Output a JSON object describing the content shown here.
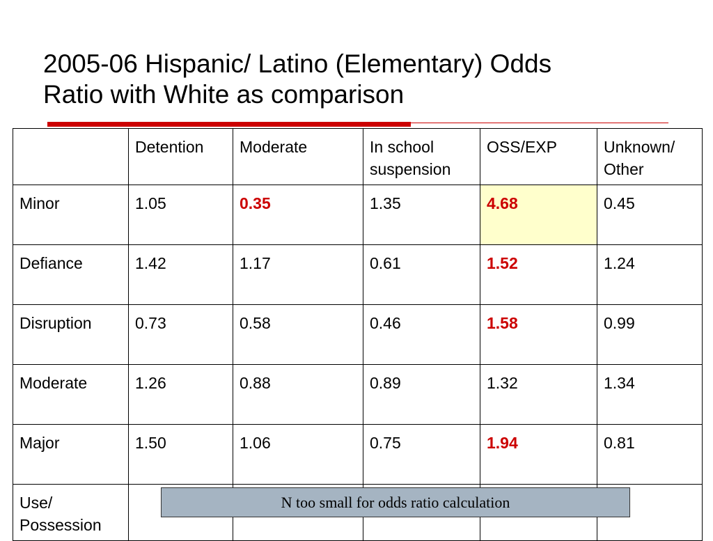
{
  "slide": {
    "title_line_1": "2005-06 Hispanic/ Latino (Elementary) Odds",
    "title_line_2": "Ratio with White as comparison"
  },
  "colors": {
    "accent_red": "#cc0000",
    "highlight_yellow": "#ffffcc",
    "note_box_fill": "#a5b4c2"
  },
  "table": {
    "header": [
      "",
      "Detention",
      "Moderate",
      "In school suspension",
      "OSS/EXP",
      "Unknown/ Other"
    ],
    "rows": [
      {
        "label": "Minor",
        "values": [
          "1.05",
          "0.35",
          "1.35",
          "4.68",
          "0.45"
        ]
      },
      {
        "label": "Defiance",
        "values": [
          "1.42",
          "1.17",
          "0.61",
          "1.52",
          "1.24"
        ]
      },
      {
        "label": "Disruption",
        "values": [
          "0.73",
          "0.58",
          "0.46",
          "1.58",
          "0.99"
        ]
      },
      {
        "label": "Moderate",
        "values": [
          "1.26",
          "0.88",
          "0.89",
          "1.32",
          "1.34"
        ]
      },
      {
        "label": "Major",
        "values": [
          "1.50",
          "1.06",
          "0.75",
          "1.94",
          "0.81"
        ]
      },
      {
        "label": "Use/ Possession",
        "values": [
          "",
          "",
          "",
          "",
          ""
        ]
      }
    ]
  },
  "note": "N too small for odds ratio calculation"
}
